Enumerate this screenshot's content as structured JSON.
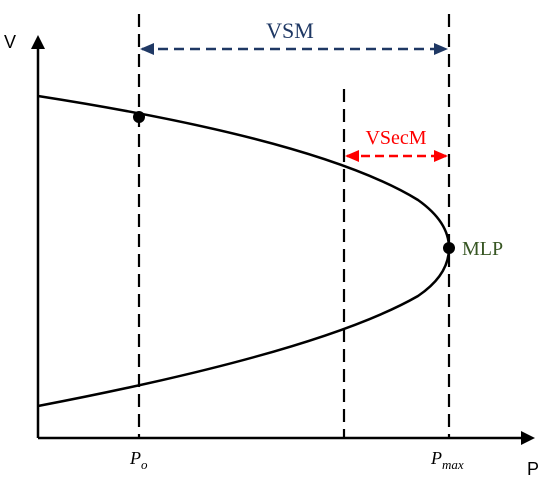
{
  "axes": {
    "x_label": "P",
    "y_label": "V"
  },
  "ticks": {
    "p0": {
      "base": "P",
      "sub": "o"
    },
    "pmax": {
      "base": "P",
      "sub": "max"
    }
  },
  "margins": {
    "vsm": {
      "label": "VSM",
      "color": "#1f3864"
    },
    "vsecm": {
      "label": "VSecM",
      "color": "#ff0000"
    }
  },
  "points": {
    "mlp": {
      "label": "MLP",
      "color": "#375623"
    }
  },
  "colors": {
    "curve": "#000000",
    "axis": "#000000"
  }
}
